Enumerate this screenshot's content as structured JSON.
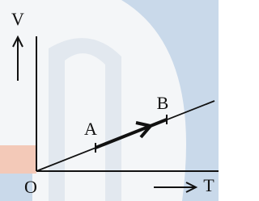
{
  "labels": {
    "y_axis": "V",
    "x_axis": "T",
    "origin": "O",
    "point_a": "A",
    "point_b": "B"
  }
}
